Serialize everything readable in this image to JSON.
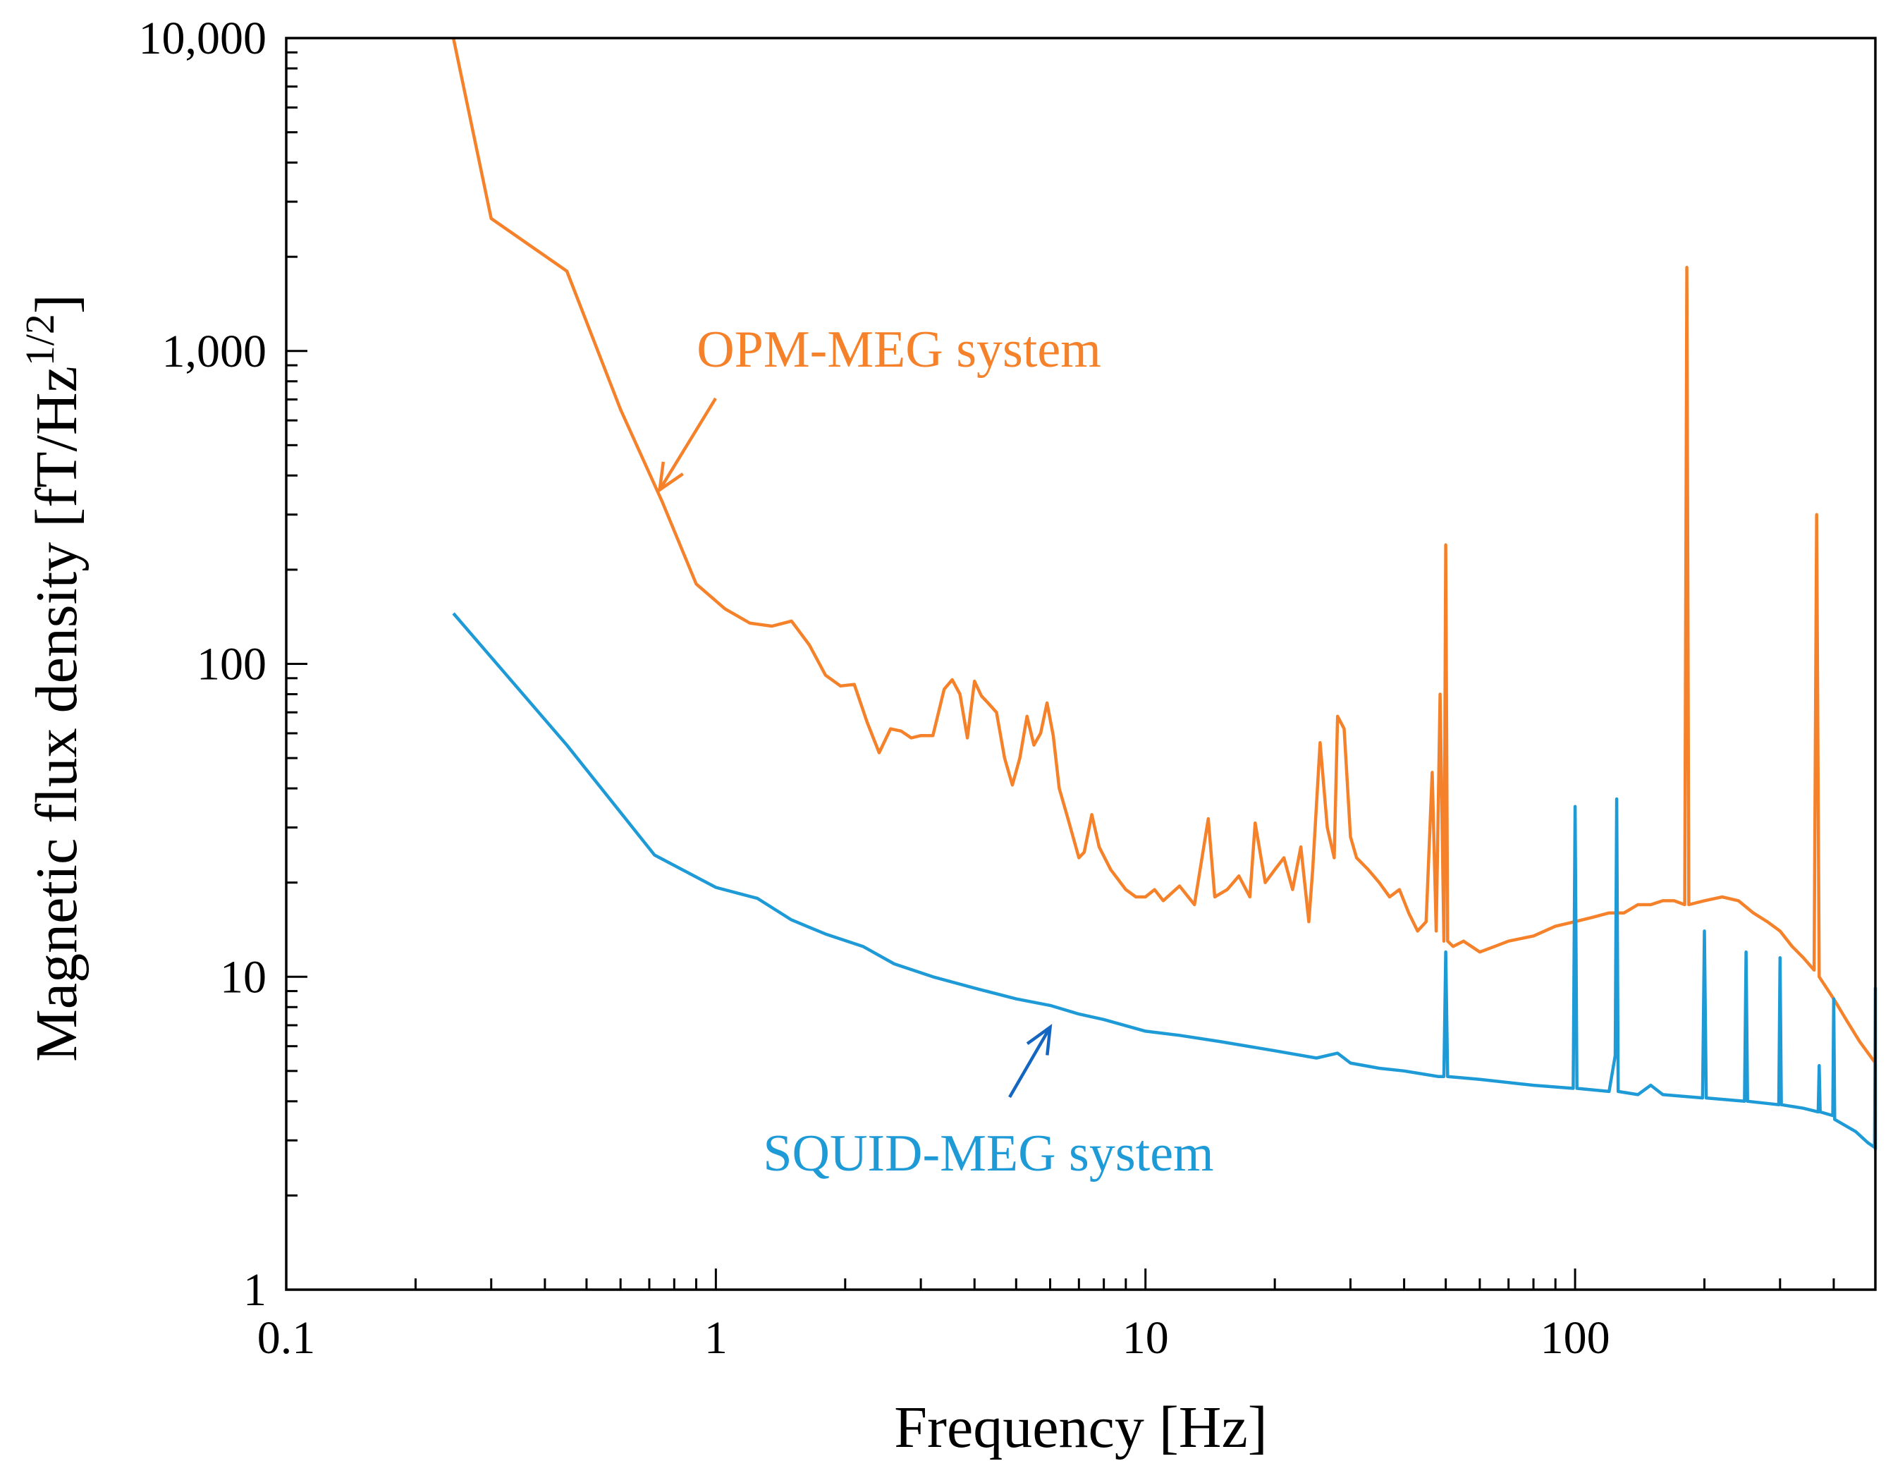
{
  "chart_data": {
    "type": "line",
    "xscale": "log",
    "yscale": "log",
    "xlim": [
      0.1,
      500
    ],
    "ylim": [
      1,
      10000
    ],
    "xlabel": "Frequency  [Hz]",
    "ylabel": {
      "main": "Magnetic  flux  density  [fT/Hz",
      "superscript": "1/2",
      "suffix": "]"
    },
    "x_ticks": [
      {
        "value": 0.1,
        "label": "0.1"
      },
      {
        "value": 1,
        "label": "1"
      },
      {
        "value": 10,
        "label": "10"
      },
      {
        "value": 100,
        "label": "100"
      }
    ],
    "y_ticks": [
      {
        "value": 1,
        "label": "1"
      },
      {
        "value": 10,
        "label": "10"
      },
      {
        "value": 100,
        "label": "100"
      },
      {
        "value": 1000,
        "label": "1,000"
      },
      {
        "value": 10000,
        "label": "10,000"
      }
    ],
    "grid": false,
    "series": [
      {
        "name": "OPM-MEG system",
        "color": "#F5822A",
        "label_position": "upper-middle",
        "points": [
          [
            0.245,
            10000
          ],
          [
            0.3,
            2650
          ],
          [
            0.45,
            1800
          ],
          [
            0.6,
            650
          ],
          [
            0.75,
            330
          ],
          [
            0.9,
            180
          ],
          [
            1.05,
            150
          ],
          [
            1.2,
            135
          ],
          [
            1.35,
            132
          ],
          [
            1.5,
            137
          ],
          [
            1.65,
            115
          ],
          [
            1.8,
            92
          ],
          [
            1.95,
            85
          ],
          [
            2.1,
            86
          ],
          [
            2.25,
            65
          ],
          [
            2.4,
            52
          ],
          [
            2.55,
            62
          ],
          [
            2.7,
            61
          ],
          [
            2.85,
            58
          ],
          [
            3.0,
            59
          ],
          [
            3.2,
            59
          ],
          [
            3.4,
            83
          ],
          [
            3.55,
            89
          ],
          [
            3.7,
            80
          ],
          [
            3.85,
            58
          ],
          [
            4.0,
            88
          ],
          [
            4.15,
            79
          ],
          [
            4.3,
            75
          ],
          [
            4.5,
            70
          ],
          [
            4.7,
            50
          ],
          [
            4.9,
            41
          ],
          [
            5.1,
            50
          ],
          [
            5.3,
            68
          ],
          [
            5.5,
            55
          ],
          [
            5.7,
            60
          ],
          [
            5.9,
            75
          ],
          [
            6.1,
            59
          ],
          [
            6.3,
            40
          ],
          [
            6.6,
            32
          ],
          [
            7.0,
            24
          ],
          [
            7.2,
            25
          ],
          [
            7.5,
            33
          ],
          [
            7.8,
            26
          ],
          [
            8.3,
            22
          ],
          [
            9.0,
            19
          ],
          [
            9.5,
            18
          ],
          [
            10.0,
            18
          ],
          [
            10.5,
            19
          ],
          [
            11.0,
            17.5
          ],
          [
            12.0,
            19.5
          ],
          [
            13.0,
            17
          ],
          [
            14.0,
            32
          ],
          [
            14.5,
            18
          ],
          [
            15.5,
            19
          ],
          [
            16.5,
            21
          ],
          [
            17.5,
            18
          ],
          [
            18.0,
            31
          ],
          [
            19.0,
            20
          ],
          [
            20.0,
            22
          ],
          [
            21.0,
            24
          ],
          [
            22.0,
            19
          ],
          [
            23.0,
            26
          ],
          [
            24.0,
            15
          ],
          [
            24.5,
            22
          ],
          [
            25.5,
            56
          ],
          [
            26.5,
            30
          ],
          [
            27.5,
            24
          ],
          [
            28.0,
            68
          ],
          [
            29.0,
            62
          ],
          [
            30.0,
            28
          ],
          [
            31.0,
            24
          ],
          [
            33.0,
            22
          ],
          [
            35.0,
            20
          ],
          [
            37.0,
            18
          ],
          [
            39.0,
            19
          ],
          [
            41.0,
            16
          ],
          [
            43.0,
            14
          ],
          [
            45.0,
            15
          ],
          [
            46.5,
            45
          ],
          [
            47.5,
            14
          ],
          [
            48.5,
            80
          ],
          [
            49.5,
            13
          ],
          [
            50.0,
            240
          ],
          [
            50.5,
            13
          ],
          [
            52.0,
            12.5
          ],
          [
            55.0,
            13
          ],
          [
            60.0,
            12
          ],
          [
            65.0,
            12.5
          ],
          [
            70.0,
            13
          ],
          [
            80.0,
            13.5
          ],
          [
            90.0,
            14.5
          ],
          [
            100.0,
            15
          ],
          [
            110.0,
            15.5
          ],
          [
            120.0,
            16
          ],
          [
            130.0,
            16
          ],
          [
            140.0,
            17
          ],
          [
            150.0,
            17
          ],
          [
            160.0,
            17.5
          ],
          [
            170.0,
            17.5
          ],
          [
            180.0,
            17
          ],
          [
            182.0,
            1850
          ],
          [
            184.0,
            17
          ],
          [
            200.0,
            17.5
          ],
          [
            220.0,
            18
          ],
          [
            240.0,
            17.5
          ],
          [
            260.0,
            16
          ],
          [
            280.0,
            15
          ],
          [
            300.0,
            14
          ],
          [
            320.0,
            12.5
          ],
          [
            340.0,
            11.5
          ],
          [
            360.0,
            10.5
          ],
          [
            365.0,
            300
          ],
          [
            370.0,
            10
          ],
          [
            400.0,
            8.5
          ],
          [
            430.0,
            7.2
          ],
          [
            460.0,
            6.2
          ],
          [
            500.0,
            5.3
          ]
        ]
      },
      {
        "name": "SQUID-MEG system",
        "color": "#1E9BD7",
        "label_position": "lower-middle",
        "points": [
          [
            0.245,
            145
          ],
          [
            0.45,
            55
          ],
          [
            0.72,
            24.5
          ],
          [
            1.0,
            19.3
          ],
          [
            1.25,
            17.8
          ],
          [
            1.5,
            15.2
          ],
          [
            1.8,
            13.7
          ],
          [
            2.2,
            12.5
          ],
          [
            2.6,
            11.0
          ],
          [
            3.2,
            10.0
          ],
          [
            4.0,
            9.2
          ],
          [
            5.0,
            8.5
          ],
          [
            6.0,
            8.1
          ],
          [
            7.0,
            7.6
          ],
          [
            8.0,
            7.3
          ],
          [
            10.0,
            6.7
          ],
          [
            12.0,
            6.5
          ],
          [
            15.0,
            6.2
          ],
          [
            20.0,
            5.8
          ],
          [
            25.0,
            5.5
          ],
          [
            28.0,
            5.7
          ],
          [
            30.0,
            5.3
          ],
          [
            35.0,
            5.1
          ],
          [
            40.0,
            5.0
          ],
          [
            48.0,
            4.8
          ],
          [
            49.5,
            4.8
          ],
          [
            50.0,
            12
          ],
          [
            50.5,
            4.8
          ],
          [
            60.0,
            4.7
          ],
          [
            80.0,
            4.5
          ],
          [
            99.0,
            4.4
          ],
          [
            100.0,
            35
          ],
          [
            101.0,
            4.4
          ],
          [
            120.0,
            4.3
          ],
          [
            124.0,
            5.6
          ],
          [
            125.0,
            37
          ],
          [
            126.0,
            4.3
          ],
          [
            140.0,
            4.2
          ],
          [
            150.0,
            4.5
          ],
          [
            160.0,
            4.2
          ],
          [
            198.0,
            4.1
          ],
          [
            200.0,
            14
          ],
          [
            202.0,
            4.1
          ],
          [
            248.0,
            4.0
          ],
          [
            250.0,
            12
          ],
          [
            252.0,
            4.0
          ],
          [
            298.0,
            3.9
          ],
          [
            300.0,
            11.5
          ],
          [
            302.0,
            3.9
          ],
          [
            340.0,
            3.8
          ],
          [
            368.0,
            3.7
          ],
          [
            370.0,
            5.2
          ],
          [
            372.0,
            3.7
          ],
          [
            398.0,
            3.6
          ],
          [
            400.0,
            8.5
          ],
          [
            402.0,
            3.5
          ],
          [
            450.0,
            3.2
          ],
          [
            480.0,
            2.95
          ],
          [
            498.0,
            2.85
          ],
          [
            500.0,
            9.2
          ],
          [
            500.0,
            2.8
          ]
        ]
      }
    ],
    "annotations": [
      {
        "text": "OPM-MEG system",
        "series": "OPM-MEG system",
        "arrow_to": [
          0.74,
          360
        ]
      },
      {
        "text": "SQUID-MEG system",
        "series": "SQUID-MEG system",
        "arrow_to": [
          6.0,
          6.9
        ]
      }
    ]
  }
}
